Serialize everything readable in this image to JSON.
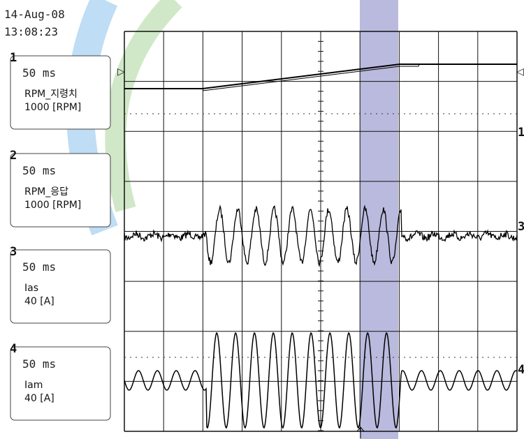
{
  "header": {
    "date": "14-Aug-08",
    "time": "13:08:23"
  },
  "channels": [
    {
      "number": "1",
      "timebase": "50 ms",
      "name": "RPM_지령치",
      "scale": "1000 [RPM]"
    },
    {
      "number": "2",
      "timebase": "50 ms",
      "name": "RPM_응답",
      "scale": "1000 [RPM]"
    },
    {
      "number": "3",
      "timebase": "50 ms",
      "name": "Ias",
      "scale": "40 [A]"
    },
    {
      "number": "4",
      "timebase": "50 ms",
      "name": "Iam",
      "scale": "40 [A]"
    }
  ]
}
